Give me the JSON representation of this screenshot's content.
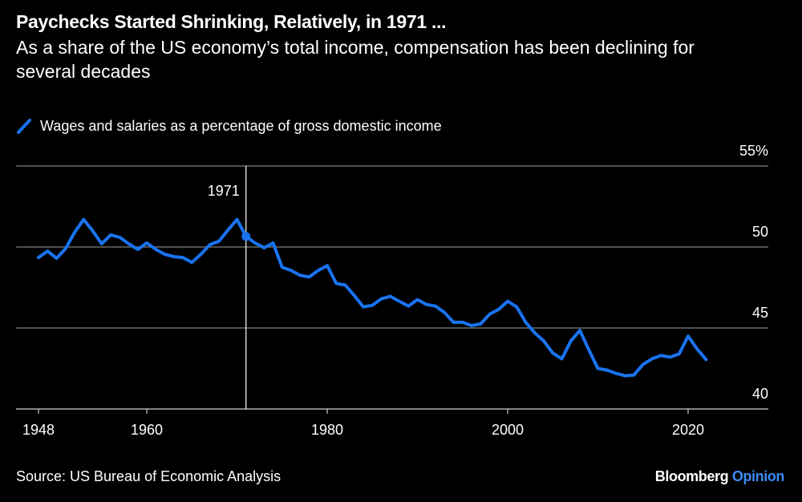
{
  "title": "Paychecks Started Shrinking, Relatively, in 1971 ...",
  "subtitle": "As a share of the US economy’s total income, compensation has been declining for several decades",
  "source": "Source: US Bureau of Economic Analysis",
  "brand": {
    "name": "Bloomberg",
    "suffix": "Opinion"
  },
  "colors": {
    "line": "#1a73f0",
    "background": "#000000",
    "grid": "#7f7f7f",
    "brand_accent": "#3b8cf5"
  },
  "chart_data": {
    "type": "line",
    "title": "Paychecks Started Shrinking, Relatively, in 1971 ...",
    "xlabel": "",
    "ylabel": "",
    "xlim": [
      1948,
      2022
    ],
    "ylim": [
      40,
      55
    ],
    "grid": true,
    "legend_placement": "top-left",
    "x_ticks": [
      {
        "value": 1948,
        "label": "1948"
      },
      {
        "value": 1960,
        "label": "1960"
      },
      {
        "value": 1980,
        "label": "1980"
      },
      {
        "value": 2000,
        "label": "2000"
      },
      {
        "value": 2020,
        "label": "2020"
      }
    ],
    "y_ticks": [
      {
        "value": 55,
        "label": "55%"
      },
      {
        "value": 50,
        "label": "50"
      },
      {
        "value": 45,
        "label": "45"
      },
      {
        "value": 40,
        "label": "40"
      }
    ],
    "annotation": {
      "x": 1971,
      "label": "1971"
    },
    "series": [
      {
        "name": "Wages and salaries as a percentage of gross domestic income",
        "x": [
          1948,
          1949,
          1950,
          1951,
          1952,
          1953,
          1954,
          1955,
          1956,
          1957,
          1958,
          1959,
          1960,
          1961,
          1962,
          1963,
          1964,
          1965,
          1966,
          1967,
          1968,
          1969,
          1970,
          1971,
          1972,
          1973,
          1974,
          1975,
          1976,
          1977,
          1978,
          1979,
          1980,
          1981,
          1982,
          1983,
          1984,
          1985,
          1986,
          1987,
          1988,
          1989,
          1990,
          1991,
          1992,
          1993,
          1994,
          1995,
          1996,
          1997,
          1998,
          1999,
          2000,
          2001,
          2002,
          2003,
          2004,
          2005,
          2006,
          2007,
          2008,
          2009,
          2010,
          2011,
          2012,
          2013,
          2014,
          2015,
          2016,
          2017,
          2018,
          2019,
          2020,
          2021,
          2022
        ],
        "values": [
          49.35,
          49.75,
          49.3,
          49.9,
          50.9,
          51.7,
          51.0,
          50.2,
          50.75,
          50.6,
          50.2,
          49.85,
          50.25,
          49.85,
          49.55,
          49.4,
          49.35,
          49.05,
          49.55,
          50.15,
          50.35,
          51.05,
          51.7,
          50.65,
          50.25,
          49.95,
          50.25,
          48.75,
          48.55,
          48.25,
          48.15,
          48.55,
          48.85,
          47.75,
          47.65,
          47.0,
          46.3,
          46.4,
          46.8,
          46.95,
          46.65,
          46.35,
          46.75,
          46.45,
          46.35,
          45.95,
          45.35,
          45.35,
          45.15,
          45.25,
          45.85,
          46.15,
          46.65,
          46.3,
          45.35,
          44.7,
          44.2,
          43.45,
          43.1,
          44.2,
          44.85,
          43.65,
          42.5,
          42.4,
          42.2,
          42.05,
          42.1,
          42.75,
          43.1,
          43.3,
          43.2,
          43.4,
          44.5,
          43.7,
          43.05
        ]
      }
    ]
  }
}
